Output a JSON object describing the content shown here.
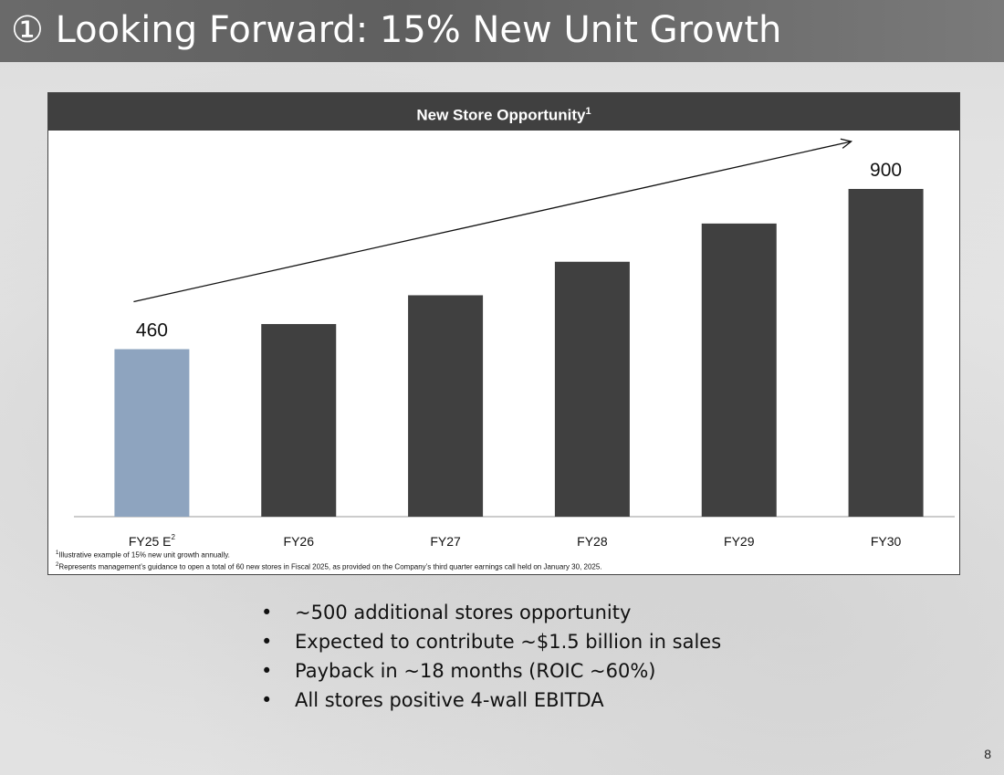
{
  "slide": {
    "title": "① Looking Forward: 15% New Unit Growth",
    "page_number": "8"
  },
  "panel": {
    "heading": "New Store Opportunity",
    "heading_sup": "1"
  },
  "chart_data": {
    "type": "bar",
    "categories": [
      "FY25 E",
      "FY26",
      "FY27",
      "FY28",
      "FY29",
      "FY30"
    ],
    "category_superscripts": [
      "2",
      "",
      "",
      "",
      "",
      ""
    ],
    "values": [
      460,
      529,
      608,
      700,
      805,
      900
    ],
    "data_labels": [
      "460",
      "",
      "",
      "",
      "",
      "900"
    ],
    "colors": [
      "#8ea4bf",
      "#404040",
      "#404040",
      "#404040",
      "#404040",
      "#404040"
    ],
    "ylim": [
      0,
      920
    ],
    "trend_arrow": true,
    "grid": false,
    "title": "",
    "xlabel": "",
    "ylabel": ""
  },
  "footnotes": [
    {
      "sup": "1",
      "text": "Illustrative example of 15% new unit growth annually."
    },
    {
      "sup": "2",
      "text": "Represents management’s guidance to open a total of 60 new stores in Fiscal 2025, as provided on the Company’s third quarter earnings call held on January 30, 2025."
    }
  ],
  "bullets": [
    "~500 additional stores opportunity",
    "Expected to contribute ~$1.5 billion in sales",
    "Payback in ~18 months (ROIC ~60%)",
    "All stores positive 4-wall EBITDA"
  ],
  "bullet_symbol": "•"
}
